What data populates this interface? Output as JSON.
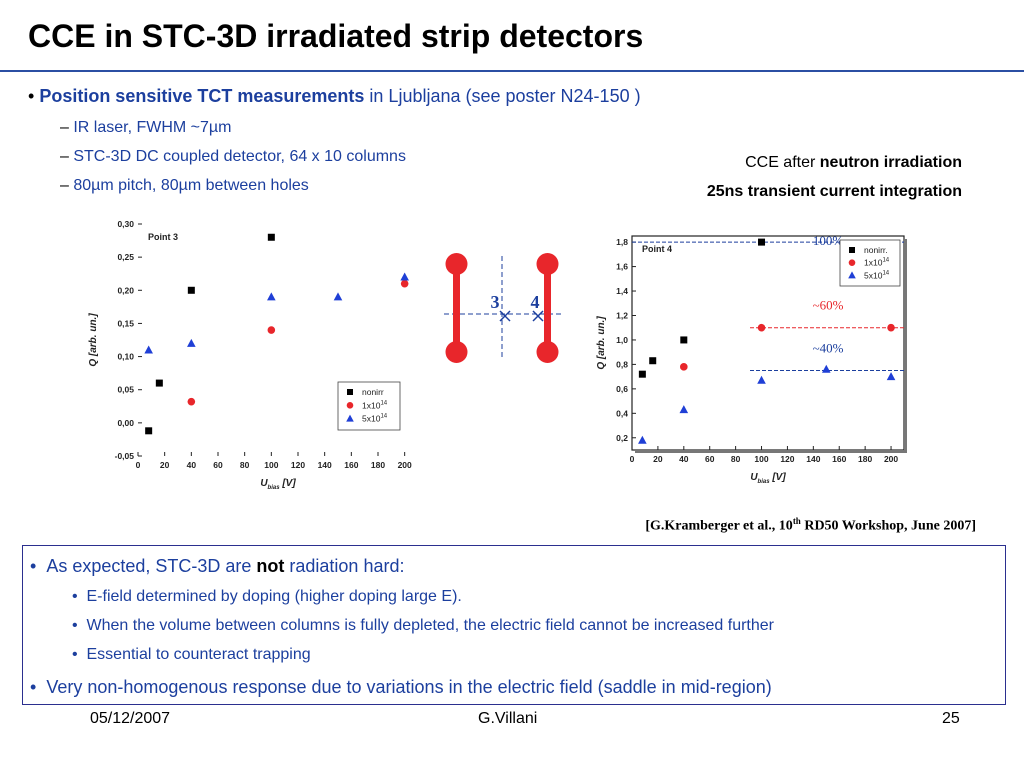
{
  "title": "CCE in STC-3D irradiated strip detectors",
  "bullets": {
    "main_bold": "Position sensitive TCT measurements",
    "main_rest": " in Ljubljana (see poster N24-150 )",
    "sub1": "IR laser, FWHM  ~7µm",
    "sub2": "STC-3D DC coupled detector, 64 x 10 columns",
    "sub3": "80µm pitch, 80µm between holes"
  },
  "caption": {
    "line1_pre": "CCE after ",
    "line1_bold": "neutron irradiation",
    "line2": "25ns transient current integration"
  },
  "reference": {
    "pre": "[G.Kramberger et al., 10",
    "sup": "th",
    "post": " RD50 Workshop, June 2007]"
  },
  "schematic": {
    "label3": "3",
    "label4": "4"
  },
  "box": {
    "b1_pre": "As expected, STC-3D are ",
    "b1_bold": "not",
    "b1_post": " radiation hard:",
    "s1": "E-field determined by doping (higher doping large E).",
    "s2": "When the volume between columns is fully depleted, the electric field cannot be increased further",
    "s3": "Essential to counteract trapping",
    "b2": "Very non-homogenous response due to variations in the electric field (saddle in mid-region)"
  },
  "footer": {
    "date": "05/12/2007",
    "author": "G.Villani",
    "page": "25"
  },
  "colors": {
    "accent": "#1c3f9e",
    "series_nonirr": "#000000",
    "series_1e14": "#e8262b",
    "series_5e14": "#1f3fd6",
    "electrode": "#e8262b"
  },
  "chart_data": [
    {
      "type": "scatter",
      "annotation": "Point 3",
      "xlabel_main": "U",
      "xlabel_sub": "bias",
      "xlabel_unit": " [V]",
      "ylabel": "Q [arb. un.]",
      "xlim": [
        0,
        210
      ],
      "ylim": [
        -0.05,
        0.3
      ],
      "xticks": [
        0,
        20,
        40,
        60,
        80,
        100,
        120,
        140,
        160,
        180,
        200
      ],
      "yticks": [
        -0.05,
        0.0,
        0.05,
        0.1,
        0.15,
        0.2,
        0.25,
        0.3
      ],
      "ytick_labels": [
        "-0,05",
        "0,00",
        "0,05",
        "0,10",
        "0,15",
        "0,20",
        "0,25",
        "0,30"
      ],
      "legend_position": "bottom-right",
      "series": [
        {
          "name": "nonirr",
          "marker": "square",
          "x": [
            8,
            16,
            40,
            100
          ],
          "y": [
            -0.012,
            0.06,
            0.2,
            0.28
          ]
        },
        {
          "name": "1x10",
          "name_sup": "14",
          "marker": "circle",
          "x": [
            40,
            100,
            200
          ],
          "y": [
            0.032,
            0.14,
            0.21
          ]
        },
        {
          "name": "5x10",
          "name_sup": "14",
          "marker": "triangle",
          "x": [
            8,
            40,
            100,
            150,
            200
          ],
          "y": [
            0.11,
            0.12,
            0.19,
            0.19,
            0.22
          ]
        }
      ]
    },
    {
      "type": "scatter",
      "annotation": "Point 4",
      "xlabel_main": "U",
      "xlabel_sub": "bias",
      "xlabel_unit": " [V]",
      "ylabel": "Q [arb. un.]",
      "xlim": [
        0,
        210
      ],
      "ylim": [
        0.1,
        1.85
      ],
      "xticks": [
        0,
        20,
        40,
        60,
        80,
        100,
        120,
        140,
        160,
        180,
        200
      ],
      "yticks": [
        0.2,
        0.4,
        0.6,
        0.8,
        1.0,
        1.2,
        1.4,
        1.6,
        1.8
      ],
      "ytick_labels": [
        "0,2",
        "0,4",
        "0,6",
        "0,8",
        "1,0",
        "1,2",
        "1,4",
        "1,6",
        "1,8"
      ],
      "legend_position": "top-right",
      "series": [
        {
          "name": "nonirr.",
          "marker": "square",
          "x": [
            8,
            16,
            40,
            100
          ],
          "y": [
            0.72,
            0.83,
            1.0,
            1.8
          ]
        },
        {
          "name": "1x10",
          "name_sup": "14",
          "marker": "circle",
          "x": [
            40,
            100,
            200
          ],
          "y": [
            0.78,
            1.1,
            1.1
          ]
        },
        {
          "name": "5x10",
          "name_sup": "14",
          "marker": "triangle",
          "x": [
            8,
            40,
            100,
            150,
            200
          ],
          "y": [
            0.18,
            0.43,
            0.67,
            0.76,
            0.7
          ]
        }
      ],
      "reference_lines": [
        {
          "label": "100%",
          "y": 1.8,
          "color": "#1c3f9e"
        },
        {
          "label": "~60%",
          "y": 1.1,
          "color": "#e8262b"
        },
        {
          "label": "~40%",
          "y": 0.75,
          "color": "#1c3f9e"
        }
      ]
    }
  ]
}
